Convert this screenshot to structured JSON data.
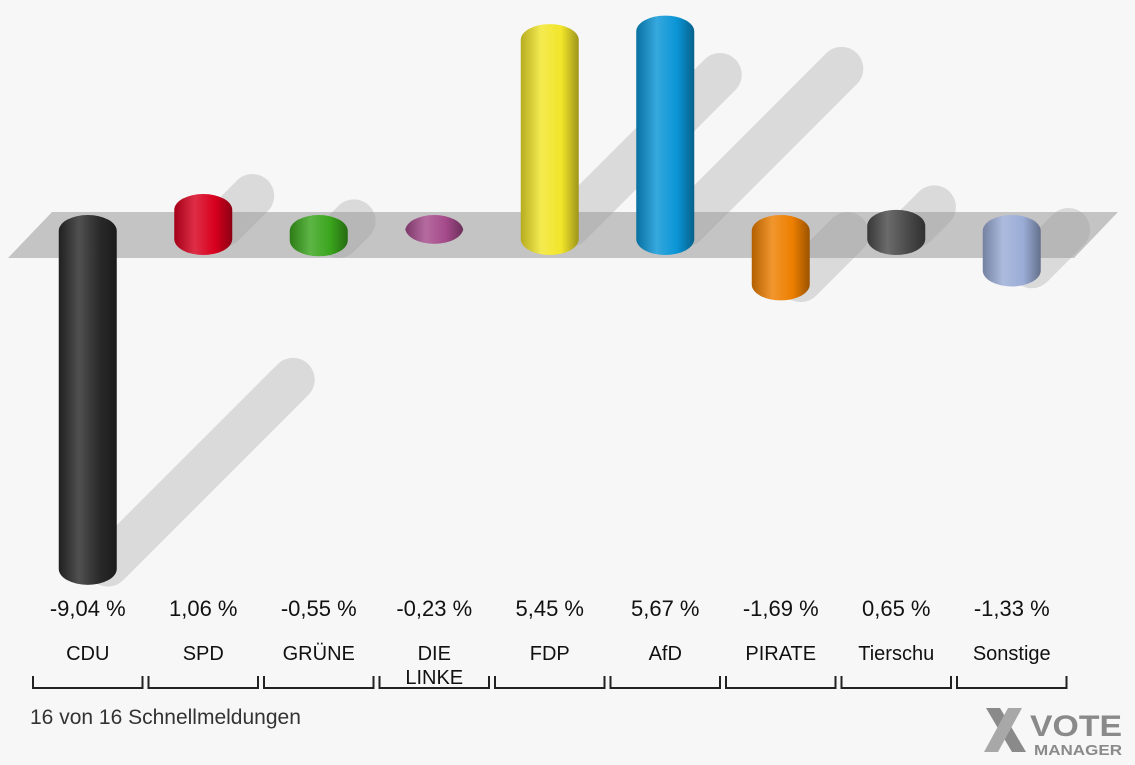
{
  "chart_data": {
    "type": "bar",
    "categories": [
      "CDU",
      "SPD",
      "GRÜNE",
      "DIE LINKE",
      "FDP",
      "AfD",
      "PIRATE",
      "Tierschu",
      "Sonstige"
    ],
    "category_lines": [
      [
        "CDU"
      ],
      [
        "SPD"
      ],
      [
        "GRÜNE"
      ],
      [
        "DIE",
        "LINKE"
      ],
      [
        "FDP"
      ],
      [
        "AfD"
      ],
      [
        "PIRATE"
      ],
      [
        "Tierschu"
      ],
      [
        "Sonstige"
      ]
    ],
    "values": [
      -9.04,
      1.06,
      -0.55,
      -0.23,
      5.45,
      5.67,
      -1.69,
      0.65,
      -1.33
    ],
    "value_labels": [
      "-9,04 %",
      "1,06 %",
      "-0,55 %",
      "-0,23 %",
      "5,45 %",
      "5,67 %",
      "-1,69 %",
      "0,65 %",
      "-1,33 %"
    ],
    "colors": [
      "#2a2a2a",
      "#d8001e",
      "#3aa51c",
      "#a54a8a",
      "#f2e52a",
      "#0a95d6",
      "#ee7f00",
      "#4a4a4a",
      "#9aacd6"
    ],
    "style": "3d-cylinder",
    "grid": false,
    "legend": "none"
  },
  "footer": {
    "status_text": "16 von 16 Schnellmeldungen"
  },
  "logo": {
    "line1": "VOTE",
    "line2": "MANAGER"
  }
}
